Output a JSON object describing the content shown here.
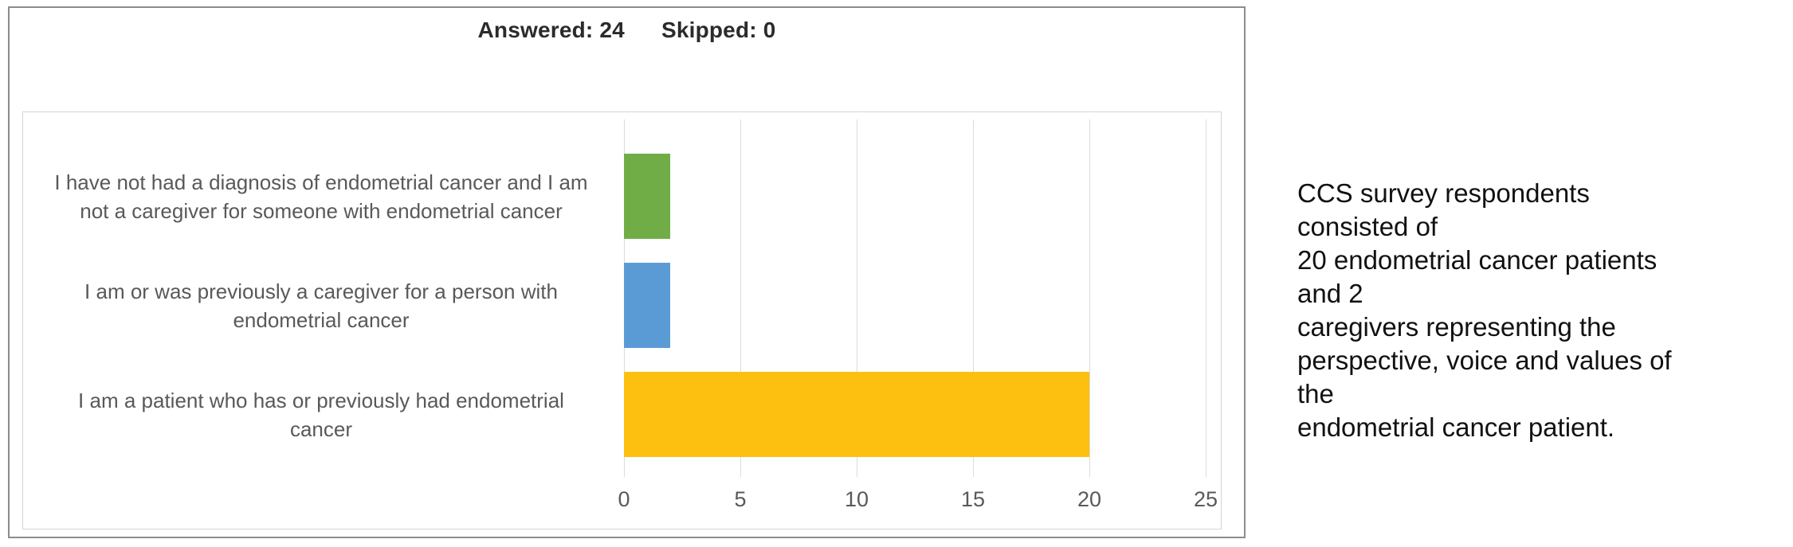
{
  "header": {
    "answered": "Answered: 24",
    "skipped": "Skipped: 0"
  },
  "chart_data": {
    "type": "bar",
    "orientation": "horizontal",
    "title": "",
    "xlabel": "",
    "ylabel": "",
    "categories": [
      "I have not had a diagnosis of endometrial cancer and I am not a caregiver for someone with endometrial cancer",
      "I am or was previously a caregiver for a person with endometrial cancer",
      "I am a patient who has or previously had endometrial cancer"
    ],
    "category_lines": [
      [
        "I have not had a diagnosis of endometrial cancer and I am",
        "not a caregiver for someone with endometrial cancer"
      ],
      [
        "I am or was previously a caregiver for a person with",
        "endometrial cancer"
      ],
      [
        "I am a patient who has or previously had endometrial",
        "cancer"
      ]
    ],
    "values": [
      2,
      2,
      20
    ],
    "colors": [
      "#70AD47",
      "#5B9BD5",
      "#FDC010"
    ],
    "xlim": [
      0,
      25
    ],
    "x_ticks": [
      "0",
      "5",
      "10",
      "15",
      "20",
      "25"
    ],
    "grid": true,
    "legend": false,
    "answered": 24,
    "skipped": 0
  },
  "note": {
    "lines": [
      "CCS survey respondents consisted of",
      "20 endometrial cancer patients and 2",
      "caregivers representing the",
      "perspective, voice and values of the",
      "endometrial cancer patient."
    ],
    "text": "CCS survey respondents consisted of 20 endometrial cancer patients and 2 caregivers representing the perspective, voice and values of the endometrial cancer patient."
  }
}
